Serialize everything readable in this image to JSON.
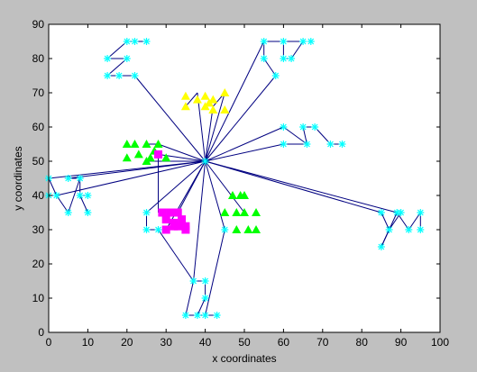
{
  "chart_data": {
    "type": "scatter",
    "title": "",
    "xlabel": "x coordinates",
    "ylabel": "y coordinates",
    "xlim": [
      0,
      100
    ],
    "ylim": [
      0,
      90
    ],
    "xticks": [
      "0",
      "10",
      "20",
      "30",
      "40",
      "50",
      "60",
      "70",
      "80",
      "90",
      "100"
    ],
    "yticks": [
      "0",
      "10",
      "20",
      "30",
      "40",
      "50",
      "60",
      "70",
      "80",
      "90"
    ],
    "grid": false,
    "colors": {
      "background": "#c0c0c0",
      "plot_area": "#ffffff",
      "axes": "#000000",
      "links": "#000080",
      "nodes": "#00ffff",
      "cluster_heads_yellow": "#ffff00",
      "cluster_heads_green": "#00ff00",
      "cluster_heads_magenta": "#ff00ff"
    },
    "base_station": {
      "x": 40,
      "y": 50,
      "marker": "star"
    },
    "sensor_nodes": {
      "marker": "star",
      "color": "#00ffff",
      "points": [
        [
          20,
          85
        ],
        [
          22,
          85
        ],
        [
          25,
          85
        ],
        [
          15,
          80
        ],
        [
          20,
          80
        ],
        [
          15,
          75
        ],
        [
          18,
          75
        ],
        [
          22,
          75
        ],
        [
          55,
          85
        ],
        [
          60,
          85
        ],
        [
          65,
          85
        ],
        [
          67,
          85
        ],
        [
          55,
          80
        ],
        [
          60,
          80
        ],
        [
          62,
          80
        ],
        [
          58,
          75
        ],
        [
          60,
          60
        ],
        [
          65,
          60
        ],
        [
          68,
          60
        ],
        [
          60,
          55
        ],
        [
          66,
          55
        ],
        [
          72,
          55
        ],
        [
          75,
          55
        ],
        [
          0,
          45
        ],
        [
          5,
          45
        ],
        [
          8,
          45
        ],
        [
          0,
          40
        ],
        [
          2,
          40
        ],
        [
          8,
          40
        ],
        [
          10,
          40
        ],
        [
          5,
          35
        ],
        [
          10,
          35
        ],
        [
          25,
          35
        ],
        [
          25,
          30
        ],
        [
          28,
          30
        ],
        [
          45,
          30
        ],
        [
          85,
          35
        ],
        [
          89,
          35
        ],
        [
          90,
          35
        ],
        [
          95,
          35
        ],
        [
          87,
          30
        ],
        [
          92,
          30
        ],
        [
          95,
          30
        ],
        [
          85,
          25
        ],
        [
          37,
          15
        ],
        [
          40,
          15
        ],
        [
          40,
          10
        ],
        [
          35,
          5
        ],
        [
          38,
          5
        ],
        [
          40,
          5
        ],
        [
          43,
          5
        ]
      ]
    },
    "cluster_heads": [
      {
        "color": "#ffff00",
        "marker": "triangle",
        "points": [
          [
            35,
            69
          ],
          [
            38,
            68
          ],
          [
            40,
            69
          ],
          [
            42,
            68
          ],
          [
            45,
            70
          ],
          [
            35,
            66
          ],
          [
            40,
            66
          ],
          [
            42,
            65
          ],
          [
            45,
            65
          ],
          [
            41,
            67
          ]
        ]
      },
      {
        "color": "#00ff00",
        "marker": "triangle",
        "points": [
          [
            20,
            55
          ],
          [
            22,
            55
          ],
          [
            25,
            55
          ],
          [
            28,
            55
          ],
          [
            20,
            51
          ],
          [
            23,
            52
          ],
          [
            26,
            51
          ],
          [
            30,
            51
          ],
          [
            25,
            50
          ],
          [
            27,
            53
          ]
        ]
      },
      {
        "color": "#00ff00",
        "marker": "triangle",
        "points": [
          [
            47,
            40
          ],
          [
            49,
            40
          ],
          [
            50,
            40
          ],
          [
            45,
            35
          ],
          [
            48,
            35
          ],
          [
            50,
            35
          ],
          [
            53,
            35
          ],
          [
            48,
            30
          ],
          [
            51,
            30
          ],
          [
            53,
            30
          ]
        ]
      },
      {
        "color": "#ff00ff",
        "marker": "square",
        "points": [
          [
            28,
            52
          ],
          [
            29,
            35
          ],
          [
            31,
            35
          ],
          [
            33,
            35
          ],
          [
            30,
            33
          ],
          [
            32,
            32
          ],
          [
            34,
            33
          ],
          [
            30,
            30
          ],
          [
            32,
            31
          ],
          [
            35,
            31
          ],
          [
            35,
            30
          ],
          [
            33,
            31
          ]
        ]
      }
    ],
    "links": [
      [
        [
          40,
          50
        ],
        [
          45,
          70
        ]
      ],
      [
        [
          40,
          50
        ],
        [
          42,
          66
        ]
      ],
      [
        [
          40,
          50
        ],
        [
          38,
          70
        ]
      ],
      [
        [
          40,
          50
        ],
        [
          22,
          75
        ]
      ],
      [
        [
          40,
          50
        ],
        [
          55,
          85
        ]
      ],
      [
        [
          40,
          50
        ],
        [
          58,
          75
        ]
      ],
      [
        [
          40,
          50
        ],
        [
          60,
          60
        ]
      ],
      [
        [
          40,
          50
        ],
        [
          60,
          55
        ]
      ],
      [
        [
          40,
          50
        ],
        [
          5,
          45
        ]
      ],
      [
        [
          40,
          50
        ],
        [
          0,
          45
        ]
      ],
      [
        [
          40,
          50
        ],
        [
          28,
          55
        ]
      ],
      [
        [
          40,
          50
        ],
        [
          25,
          50
        ]
      ],
      [
        [
          40,
          50
        ],
        [
          28,
          52
        ]
      ],
      [
        [
          40,
          50
        ],
        [
          33,
          35
        ]
      ],
      [
        [
          40,
          50
        ],
        [
          50,
          35
        ]
      ],
      [
        [
          40,
          50
        ],
        [
          45,
          30
        ]
      ],
      [
        [
          40,
          50
        ],
        [
          85,
          35
        ]
      ],
      [
        [
          40,
          50
        ],
        [
          89,
          35
        ]
      ],
      [
        [
          40,
          50
        ],
        [
          25,
          35
        ]
      ],
      [
        [
          40,
          50
        ],
        [
          37,
          15
        ]
      ],
      [
        [
          40,
          50
        ],
        [
          30,
          30
        ]
      ],
      [
        [
          40,
          50
        ],
        [
          2,
          40
        ]
      ],
      [
        [
          22,
          75
        ],
        [
          15,
          75
        ]
      ],
      [
        [
          15,
          75
        ],
        [
          20,
          80
        ]
      ],
      [
        [
          20,
          80
        ],
        [
          15,
          80
        ]
      ],
      [
        [
          15,
          80
        ],
        [
          20,
          85
        ]
      ],
      [
        [
          20,
          85
        ],
        [
          25,
          85
        ]
      ],
      [
        [
          22,
          75
        ],
        [
          18,
          75
        ]
      ],
      [
        [
          55,
          85
        ],
        [
          60,
          85
        ]
      ],
      [
        [
          60,
          85
        ],
        [
          65,
          85
        ]
      ],
      [
        [
          65,
          85
        ],
        [
          62,
          80
        ]
      ],
      [
        [
          62,
          80
        ],
        [
          60,
          80
        ]
      ],
      [
        [
          60,
          80
        ],
        [
          60,
          85
        ]
      ],
      [
        [
          58,
          75
        ],
        [
          55,
          80
        ]
      ],
      [
        [
          55,
          80
        ],
        [
          55,
          85
        ]
      ],
      [
        [
          60,
          60
        ],
        [
          66,
          55
        ]
      ],
      [
        [
          66,
          55
        ],
        [
          65,
          60
        ]
      ],
      [
        [
          65,
          60
        ],
        [
          68,
          60
        ]
      ],
      [
        [
          68,
          60
        ],
        [
          72,
          55
        ]
      ],
      [
        [
          72,
          55
        ],
        [
          75,
          55
        ]
      ],
      [
        [
          60,
          55
        ],
        [
          66,
          55
        ]
      ],
      [
        [
          0,
          45
        ],
        [
          2,
          40
        ]
      ],
      [
        [
          2,
          40
        ],
        [
          0,
          40
        ]
      ],
      [
        [
          5,
          45
        ],
        [
          8,
          45
        ]
      ],
      [
        [
          8,
          45
        ],
        [
          5,
          35
        ]
      ],
      [
        [
          5,
          35
        ],
        [
          2,
          40
        ]
      ],
      [
        [
          8,
          45
        ],
        [
          8,
          40
        ]
      ],
      [
        [
          8,
          40
        ],
        [
          10,
          40
        ]
      ],
      [
        [
          8,
          40
        ],
        [
          10,
          35
        ]
      ],
      [
        [
          25,
          35
        ],
        [
          25,
          30
        ]
      ],
      [
        [
          25,
          30
        ],
        [
          28,
          30
        ]
      ],
      [
        [
          28,
          30
        ],
        [
          37,
          15
        ]
      ],
      [
        [
          85,
          35
        ],
        [
          87,
          30
        ]
      ],
      [
        [
          87,
          30
        ],
        [
          85,
          25
        ]
      ],
      [
        [
          85,
          25
        ],
        [
          89,
          35
        ]
      ],
      [
        [
          89,
          35
        ],
        [
          90,
          35
        ]
      ],
      [
        [
          90,
          35
        ],
        [
          87,
          30
        ]
      ],
      [
        [
          89,
          35
        ],
        [
          92,
          30
        ]
      ],
      [
        [
          92,
          30
        ],
        [
          95,
          35
        ]
      ],
      [
        [
          95,
          35
        ],
        [
          95,
          30
        ]
      ],
      [
        [
          37,
          15
        ],
        [
          40,
          15
        ]
      ],
      [
        [
          40,
          15
        ],
        [
          40,
          10
        ]
      ],
      [
        [
          40,
          10
        ],
        [
          38,
          5
        ]
      ],
      [
        [
          38,
          5
        ],
        [
          35,
          5
        ]
      ],
      [
        [
          37,
          15
        ],
        [
          35,
          5
        ]
      ],
      [
        [
          38,
          5
        ],
        [
          43,
          5
        ]
      ],
      [
        [
          45,
          30
        ],
        [
          40,
          5
        ]
      ],
      [
        [
          45,
          70
        ],
        [
          42,
          66
        ]
      ],
      [
        [
          38,
          70
        ],
        [
          35,
          66
        ]
      ],
      [
        [
          28,
          55
        ],
        [
          25,
          55
        ]
      ],
      [
        [
          28,
          52
        ],
        [
          28,
          35
        ]
      ]
    ]
  }
}
